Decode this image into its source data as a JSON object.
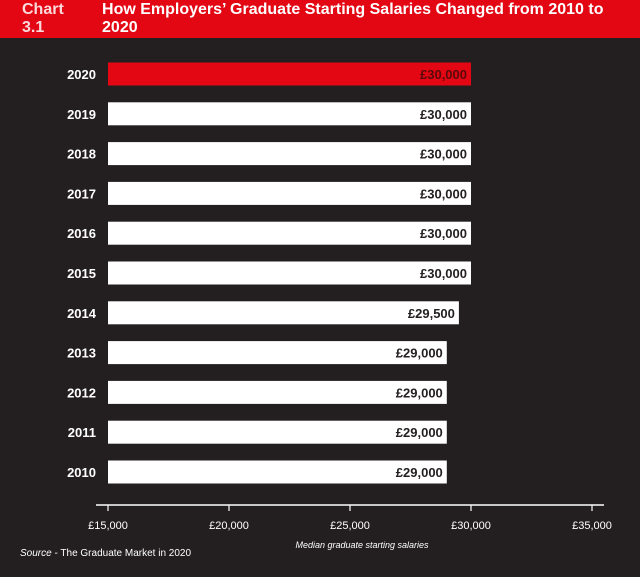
{
  "header": {
    "chart_number": "Chart 3.1",
    "title": "How Employers’ Graduate Starting Salaries Changed from 2010 to 2020"
  },
  "source": {
    "label": "Source",
    "text": " - The Graduate Market in 2020"
  },
  "colors": {
    "background": "#231f20",
    "accent": "#e30613",
    "bar": "#ffffff",
    "text": "#ffffff"
  },
  "chart_data": {
    "type": "bar",
    "orientation": "horizontal",
    "title": "How Employers’ Graduate Starting Salaries Changed from 2010 to 2020",
    "xlabel": "Median graduate starting salaries",
    "ylabel": "",
    "xlim": [
      15000,
      35000
    ],
    "xticks": [
      15000,
      20000,
      25000,
      30000,
      35000
    ],
    "xtick_labels": [
      "£15,000",
      "£20,000",
      "£25,000",
      "£30,000",
      "£35,000"
    ],
    "categories": [
      "2020",
      "2019",
      "2018",
      "2017",
      "2016",
      "2015",
      "2014",
      "2013",
      "2012",
      "2011",
      "2010"
    ],
    "values": [
      30000,
      30000,
      30000,
      30000,
      30000,
      30000,
      29500,
      29000,
      29000,
      29000,
      29000
    ],
    "value_labels": [
      "£30,000",
      "£30,000",
      "£30,000",
      "£30,000",
      "£30,000",
      "£30,000",
      "£29,500",
      "£29,000",
      "£29,000",
      "£29,000",
      "£29,000"
    ],
    "highlight_index": 0,
    "grid": false
  }
}
